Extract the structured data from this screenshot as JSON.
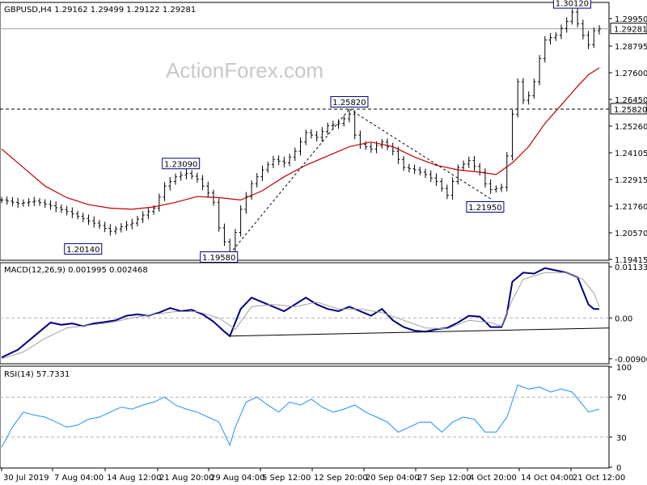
{
  "chart_data": [
    {
      "type": "candlestick",
      "header": "GBPUSD,H4  1.29162 1.29499 1.29122 1.29281",
      "watermark": "ActionForex.com",
      "ylim": [
        1.193,
        1.3042
      ],
      "y_ticks": [
        "1.29950",
        "1.28795",
        "1.27600",
        "1.26450",
        "1.25260",
        "1.24105",
        "1.22915",
        "1.21760",
        "1.20570",
        "1.19415"
      ],
      "last_price": "1.29281",
      "hline_label": "1.25820",
      "hline_value": 1.2582,
      "x_tick_labels": [
        "30 Jul 2019",
        "7 Aug 04:00",
        "14 Aug 12:00",
        "21 Aug 20:00",
        "29 Aug 04:00",
        "5 Sep 12:00",
        "12 Sep 20:00",
        "20 Sep 04:00",
        "27 Sep 12:00",
        "4 Oct 20:00",
        "14 Oct 04:00",
        "21 Oct 12:00"
      ],
      "annotations": [
        {
          "text": "1.20140",
          "value": 1.2014
        },
        {
          "text": "1.23090",
          "value": 1.2309
        },
        {
          "text": "1.19580",
          "value": 1.1958
        },
        {
          "text": "1.25820",
          "value": 1.2582
        },
        {
          "text": "1.21950",
          "value": 1.2195
        },
        {
          "text": "1.30120",
          "value": 1.3012
        }
      ],
      "close_path": [
        [
          0,
          1.219
        ],
        [
          3,
          1.2175
        ],
        [
          6,
          1.2185
        ],
        [
          9,
          1.2165
        ],
        [
          12,
          1.214
        ],
        [
          15,
          1.211
        ],
        [
          18,
          1.208
        ],
        [
          20,
          1.2055
        ],
        [
          22,
          1.2075
        ],
        [
          24,
          1.209
        ],
        [
          26,
          1.2125
        ],
        [
          28,
          1.2155
        ],
        [
          30,
          1.225
        ],
        [
          32,
          1.229
        ],
        [
          34,
          1.2305
        ],
        [
          36,
          1.228
        ],
        [
          38,
          1.222
        ],
        [
          39,
          1.218
        ],
        [
          40,
          1.207
        ],
        [
          41,
          1.201
        ],
        [
          42,
          1.1965
        ],
        [
          43,
          1.205
        ],
        [
          44,
          1.215
        ],
        [
          46,
          1.226
        ],
        [
          48,
          1.232
        ],
        [
          50,
          1.2365
        ],
        [
          52,
          1.235
        ],
        [
          54,
          1.24
        ],
        [
          56,
          1.248
        ],
        [
          58,
          1.246
        ],
        [
          60,
          1.251
        ],
        [
          62,
          1.252
        ],
        [
          64,
          1.256
        ],
        [
          65,
          1.247
        ],
        [
          66,
          1.243
        ],
        [
          68,
          1.241
        ],
        [
          70,
          1.244
        ],
        [
          72,
          1.24
        ],
        [
          74,
          1.233
        ],
        [
          76,
          1.232
        ],
        [
          78,
          1.23
        ],
        [
          80,
          1.227
        ],
        [
          82,
          1.221
        ],
        [
          84,
          1.233
        ],
        [
          86,
          1.236
        ],
        [
          88,
          1.231
        ],
        [
          89,
          1.226
        ],
        [
          90,
          1.2235
        ],
        [
          92,
          1.2245
        ],
        [
          93,
          1.238
        ],
        [
          94,
          1.256
        ],
        [
          95,
          1.27
        ],
        [
          96,
          1.262
        ],
        [
          97,
          1.264
        ],
        [
          98,
          1.27
        ],
        [
          99,
          1.28
        ],
        [
          100,
          1.288
        ],
        [
          102,
          1.29
        ],
        [
          104,
          1.296
        ],
        [
          105,
          1.3
        ],
        [
          106,
          1.295
        ],
        [
          107,
          1.29
        ],
        [
          108,
          1.286
        ],
        [
          109,
          1.292
        ],
        [
          110,
          1.2928
        ]
      ],
      "ma_path": [
        [
          0,
          1.241
        ],
        [
          4,
          1.233
        ],
        [
          8,
          1.225
        ],
        [
          12,
          1.22
        ],
        [
          16,
          1.217
        ],
        [
          20,
          1.2155
        ],
        [
          24,
          1.215
        ],
        [
          28,
          1.216
        ],
        [
          32,
          1.218
        ],
        [
          36,
          1.2205
        ],
        [
          40,
          1.22
        ],
        [
          44,
          1.219
        ],
        [
          48,
          1.223
        ],
        [
          52,
          1.229
        ],
        [
          56,
          1.234
        ],
        [
          60,
          1.238
        ],
        [
          64,
          1.242
        ],
        [
          68,
          1.244
        ],
        [
          72,
          1.242
        ],
        [
          76,
          1.2375
        ],
        [
          80,
          1.234
        ],
        [
          84,
          1.232
        ],
        [
          88,
          1.231
        ],
        [
          91,
          1.23
        ],
        [
          94,
          1.235
        ],
        [
          97,
          1.242
        ],
        [
          100,
          1.252
        ],
        [
          103,
          1.26
        ],
        [
          106,
          1.268
        ],
        [
          108,
          1.273
        ],
        [
          110,
          1.276
        ]
      ],
      "trendlines": [
        {
          "from": [
            42,
            1.1958
          ],
          "to": [
            64,
            1.2582
          ]
        },
        {
          "from": [
            64,
            1.2582
          ],
          "to": [
            90,
            1.2195
          ]
        }
      ],
      "colors": {
        "candle": "#000000",
        "ma": "#c00000",
        "trendline": "#000000"
      }
    },
    {
      "type": "line",
      "title": "MACD(12,26,9) 0.001995 0.002468",
      "ylim": [
        -0.0101,
        0.0122
      ],
      "y_ticks": [
        "0.011332",
        "0.00",
        "-0.009006"
      ],
      "series": [
        {
          "name": "MACD",
          "color": "#000080",
          "points": [
            [
              0,
              -0.0087
            ],
            [
              3,
              -0.007
            ],
            [
              6,
              -0.004
            ],
            [
              9,
              -0.001
            ],
            [
              11,
              -0.0015
            ],
            [
              13,
              -0.0012
            ],
            [
              15,
              -0.0018
            ],
            [
              17,
              -0.0012
            ],
            [
              19,
              -0.0009
            ],
            [
              21,
              -0.0005
            ],
            [
              23,
              0.0005
            ],
            [
              25,
              0.0008
            ],
            [
              27,
              0.0005
            ],
            [
              29,
              0.0012
            ],
            [
              31,
              0.0022
            ],
            [
              33,
              0.0015
            ],
            [
              35,
              0.0018
            ],
            [
              37,
              0.0008
            ],
            [
              39,
              -0.0008
            ],
            [
              41,
              -0.003
            ],
            [
              42,
              -0.004
            ],
            [
              44,
              0.002
            ],
            [
              46,
              0.0045
            ],
            [
              48,
              0.0035
            ],
            [
              50,
              0.0025
            ],
            [
              52,
              0.0015
            ],
            [
              54,
              0.003
            ],
            [
              56,
              0.0045
            ],
            [
              58,
              0.003
            ],
            [
              60,
              0.002
            ],
            [
              62,
              0.0015
            ],
            [
              64,
              0.0025
            ],
            [
              66,
              0.0015
            ],
            [
              68,
              0.0005
            ],
            [
              70,
              0.002
            ],
            [
              72,
              -0.0005
            ],
            [
              74,
              -0.002
            ],
            [
              76,
              -0.0028
            ],
            [
              78,
              -0.003
            ],
            [
              80,
              -0.0025
            ],
            [
              82,
              -0.0022
            ],
            [
              84,
              -0.001
            ],
            [
              86,
              0.0005
            ],
            [
              88,
              0.0003
            ],
            [
              89,
              -0.0008
            ],
            [
              90,
              -0.002
            ],
            [
              92,
              -0.002
            ],
            [
              93,
              0.001
            ],
            [
              94,
              0.008
            ],
            [
              96,
              0.01
            ],
            [
              98,
              0.0098
            ],
            [
              100,
              0.011
            ],
            [
              102,
              0.0105
            ],
            [
              104,
              0.01
            ],
            [
              106,
              0.009
            ],
            [
              107,
              0.006
            ],
            [
              108,
              0.003
            ],
            [
              109,
              0.002
            ],
            [
              110,
              0.002
            ]
          ]
        },
        {
          "name": "Signal",
          "color": "#a0a0a0",
          "points": [
            [
              0,
              -0.009
            ],
            [
              4,
              -0.0075
            ],
            [
              8,
              -0.0045
            ],
            [
              12,
              -0.0022
            ],
            [
              16,
              -0.0016
            ],
            [
              20,
              -0.001
            ],
            [
              24,
              0.0
            ],
            [
              28,
              0.0008
            ],
            [
              32,
              0.0014
            ],
            [
              36,
              0.0014
            ],
            [
              40,
              0.0
            ],
            [
              43,
              -0.0025
            ],
            [
              46,
              0.0025
            ],
            [
              50,
              0.003
            ],
            [
              54,
              0.0025
            ],
            [
              58,
              0.0035
            ],
            [
              62,
              0.002
            ],
            [
              66,
              0.002
            ],
            [
              70,
              0.0012
            ],
            [
              74,
              -0.0005
            ],
            [
              78,
              -0.0022
            ],
            [
              82,
              -0.0024
            ],
            [
              86,
              -0.0005
            ],
            [
              90,
              -0.001
            ],
            [
              92,
              -0.0018
            ],
            [
              94,
              0.004
            ],
            [
              96,
              0.0085
            ],
            [
              100,
              0.01
            ],
            [
              104,
              0.01
            ],
            [
              107,
              0.0085
            ],
            [
              109,
              0.0055
            ],
            [
              110,
              0.0025
            ]
          ]
        }
      ],
      "trendline": {
        "from": [
          42,
          -0.004
        ],
        "to": [
          110,
          -0.0022
        ]
      }
    },
    {
      "type": "line",
      "title": "RSI(14) 57.7331",
      "ylim": [
        0,
        100
      ],
      "y_ticks": [
        "100",
        "70",
        "30",
        "0"
      ],
      "levels": [
        70,
        30
      ],
      "series": [
        {
          "name": "RSI(14)",
          "color": "#1e90ff",
          "points": [
            [
              0,
              20
            ],
            [
              2,
              40
            ],
            [
              4,
              55
            ],
            [
              6,
              52
            ],
            [
              8,
              50
            ],
            [
              10,
              45
            ],
            [
              12,
              40
            ],
            [
              14,
              42
            ],
            [
              16,
              48
            ],
            [
              18,
              50
            ],
            [
              20,
              55
            ],
            [
              22,
              60
            ],
            [
              24,
              58
            ],
            [
              26,
              62
            ],
            [
              28,
              65
            ],
            [
              30,
              70
            ],
            [
              32,
              62
            ],
            [
              34,
              58
            ],
            [
              36,
              55
            ],
            [
              38,
              50
            ],
            [
              40,
              45
            ],
            [
              42,
              22
            ],
            [
              43,
              40
            ],
            [
              45,
              65
            ],
            [
              47,
              70
            ],
            [
              49,
              62
            ],
            [
              51,
              55
            ],
            [
              53,
              65
            ],
            [
              55,
              62
            ],
            [
              57,
              68
            ],
            [
              59,
              60
            ],
            [
              61,
              55
            ],
            [
              63,
              58
            ],
            [
              65,
              62
            ],
            [
              67,
              55
            ],
            [
              69,
              50
            ],
            [
              71,
              45
            ],
            [
              73,
              35
            ],
            [
              75,
              40
            ],
            [
              77,
              45
            ],
            [
              79,
              45
            ],
            [
              81,
              35
            ],
            [
              83,
              45
            ],
            [
              85,
              50
            ],
            [
              87,
              48
            ],
            [
              89,
              35
            ],
            [
              91,
              35
            ],
            [
              93,
              50
            ],
            [
              95,
              82
            ],
            [
              97,
              78
            ],
            [
              99,
              80
            ],
            [
              101,
              75
            ],
            [
              103,
              78
            ],
            [
              105,
              75
            ],
            [
              107,
              62
            ],
            [
              108,
              55
            ],
            [
              110,
              58
            ]
          ]
        }
      ]
    }
  ]
}
